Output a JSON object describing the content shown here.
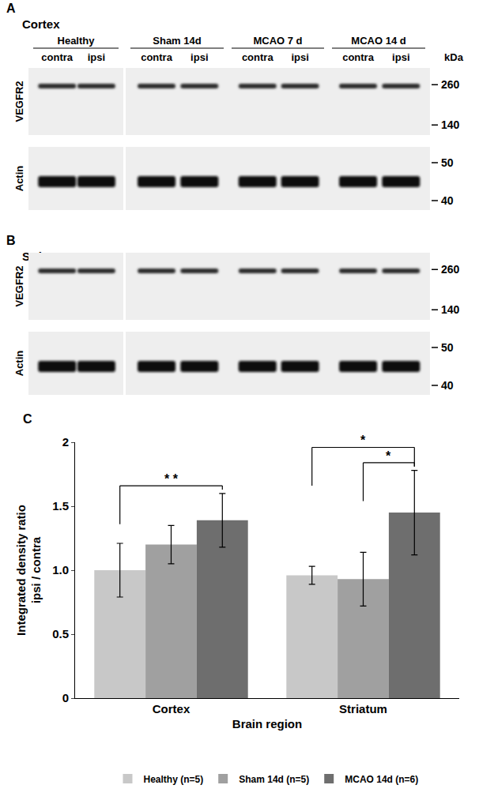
{
  "blots": [
    {
      "letter": "A",
      "region": "Cortex",
      "groups": [
        "Healthy",
        "Sham 14d",
        "MCAO 7 d",
        "MCAO 14 d"
      ],
      "lanes": [
        "contra",
        "ipsi"
      ],
      "unit": "kDa",
      "rows": [
        {
          "label": "VEGFR2",
          "markers": [
            260,
            140
          ]
        },
        {
          "label": "Actin",
          "markers": [
            50,
            40
          ]
        }
      ]
    },
    {
      "letter": "B",
      "region": "Striatum",
      "rows": [
        {
          "label": "VEGFR2",
          "markers": [
            260,
            140
          ]
        },
        {
          "label": "Actin",
          "markers": [
            50,
            40
          ]
        }
      ]
    }
  ],
  "chart_data": {
    "type": "bar",
    "panel_label": "C",
    "x_label": "Brain region",
    "y_label": "Integrated density ratio\nipsi / contra",
    "categories": [
      "Cortex",
      "Striatum"
    ],
    "series": [
      {
        "name": "Healthy (n=5)",
        "color": "#c8c8c8",
        "values": [
          1.0,
          0.96
        ],
        "errors": [
          0.21,
          0.07
        ]
      },
      {
        "name": "Sham 14d (n=5)",
        "color": "#a0a0a0",
        "values": [
          1.2,
          0.93
        ],
        "errors": [
          0.15,
          0.21
        ]
      },
      {
        "name": "MCAO 14d (n=6)",
        "color": "#6e6e6e",
        "values": [
          1.39,
          1.45
        ],
        "errors": [
          0.21,
          0.33
        ]
      }
    ],
    "significance": [
      {
        "category": "Cortex",
        "from": "Healthy (n=5)",
        "to": "MCAO 14d (n=6)",
        "label": "* *"
      },
      {
        "category": "Striatum",
        "from": "Healthy (n=5)",
        "to": "MCAO 14d (n=6)",
        "label": "*"
      },
      {
        "category": "Striatum",
        "from": "Sham 14d (n=5)",
        "to": "MCAO 14d (n=6)",
        "label": "*"
      }
    ],
    "ylim": [
      0,
      2
    ],
    "yticks": [
      0,
      0.5,
      {
        "value": 1,
        "label": "1.0"
      },
      1.5,
      2
    ],
    "grid": false,
    "legend": "bottom"
  }
}
